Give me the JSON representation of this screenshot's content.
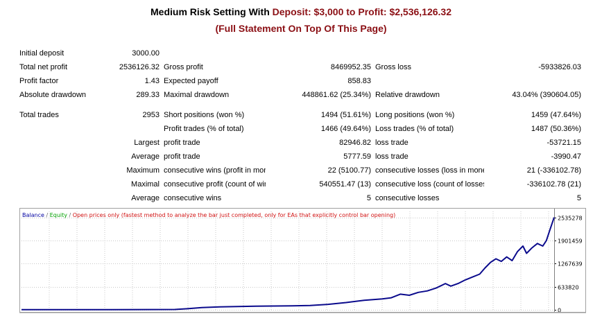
{
  "header": {
    "title_prefix": "Medium Risk Setting With ",
    "title_highlight": "Deposit: $3,000 to Profit: $2,536,126.32",
    "subtitle": "(Full Statement On Top Of This Page)"
  },
  "colors": {
    "title_text": "#000000",
    "highlight_text": "#8b0f14",
    "balance_line": "#0a0a8c",
    "equity_legend": "#00a000",
    "note_legend": "#d01010",
    "grid": "#c8c8c8"
  },
  "report": {
    "initial_deposit": {
      "label": "Initial deposit",
      "value": "3000.00"
    },
    "total_net_profit": {
      "label": "Total net profit",
      "value": "2536126.32"
    },
    "gross_profit": {
      "label": "Gross profit",
      "value": "8469952.35"
    },
    "gross_loss": {
      "label": "Gross loss",
      "value": "-5933826.03"
    },
    "profit_factor": {
      "label": "Profit factor",
      "value": "1.43"
    },
    "expected_payoff": {
      "label": "Expected payoff",
      "value": "858.83"
    },
    "absolute_drawdown": {
      "label": "Absolute drawdown",
      "value": "289.33"
    },
    "maximal_drawdown": {
      "label": "Maximal drawdown",
      "value": "448861.62 (25.34%)"
    },
    "relative_drawdown": {
      "label": "Relative drawdown",
      "value": "43.04% (390604.05)"
    },
    "total_trades": {
      "label": "Total trades",
      "value": "2953"
    },
    "short_positions": {
      "label": "Short positions (won %)",
      "value": "1494 (51.61%)"
    },
    "long_positions": {
      "label": "Long positions (won %)",
      "value": "1459 (47.64%)"
    },
    "profit_trades": {
      "label": "Profit trades (% of total)",
      "value": "1466 (49.64%)"
    },
    "loss_trades": {
      "label": "Loss trades (% of total)",
      "value": "1487 (50.36%)"
    },
    "largest": {
      "prefix": "Largest",
      "profit_label": "profit trade",
      "profit_value": "82946.82",
      "loss_label": "loss trade",
      "loss_value": "-53721.15"
    },
    "average": {
      "prefix": "Average",
      "profit_label": "profit trade",
      "profit_value": "5777.59",
      "loss_label": "loss trade",
      "loss_value": "-3990.47"
    },
    "maximum": {
      "prefix": "Maximum",
      "wins_label": "consecutive wins (profit in money)",
      "wins_value": "22 (5100.77)",
      "losses_label": "consecutive losses (loss in money)",
      "losses_value": "21 (-336102.78)"
    },
    "maximal": {
      "prefix": "Maximal",
      "profit_label": "consecutive profit (count of wins)",
      "profit_value": "540551.47 (13)",
      "loss_label": "consecutive loss (count of losses)",
      "loss_value": "-336102.78 (21)"
    },
    "average_consecutive": {
      "prefix": "Average",
      "wins_label": "consecutive wins",
      "wins_value": "5",
      "losses_label": "consecutive losses",
      "losses_value": "5"
    }
  },
  "chart_legend": {
    "balance": "Balance",
    "sep1": " / ",
    "equity": "Equity",
    "sep2": " / ",
    "note": "Open prices only (fastest method to analyze the bar just completed, only for EAs that explicitly control bar opening)"
  },
  "chart_data": {
    "type": "line",
    "ylim": [
      0,
      2700000
    ],
    "yticks": [
      {
        "value": 0,
        "label": "0"
      },
      {
        "value": 633820,
        "label": "633820"
      },
      {
        "value": 1267639,
        "label": "1267639"
      },
      {
        "value": 1901459,
        "label": "1901459"
      },
      {
        "value": 2535278,
        "label": "2535278"
      }
    ],
    "x_range": [
      0,
      2953
    ],
    "grid": true,
    "series": [
      {
        "color": "#0a0a8c",
        "points": [
          [
            0,
            3000
          ],
          [
            100,
            4000
          ],
          [
            300,
            5000
          ],
          [
            500,
            6000
          ],
          [
            700,
            8000
          ],
          [
            850,
            10000
          ],
          [
            920,
            30000
          ],
          [
            1000,
            60000
          ],
          [
            1100,
            80000
          ],
          [
            1200,
            90000
          ],
          [
            1300,
            100000
          ],
          [
            1400,
            105000
          ],
          [
            1500,
            110000
          ],
          [
            1600,
            120000
          ],
          [
            1700,
            150000
          ],
          [
            1800,
            200000
          ],
          [
            1900,
            260000
          ],
          [
            2000,
            300000
          ],
          [
            2050,
            330000
          ],
          [
            2100,
            430000
          ],
          [
            2150,
            400000
          ],
          [
            2200,
            480000
          ],
          [
            2250,
            520000
          ],
          [
            2300,
            600000
          ],
          [
            2350,
            720000
          ],
          [
            2380,
            650000
          ],
          [
            2420,
            720000
          ],
          [
            2460,
            820000
          ],
          [
            2500,
            900000
          ],
          [
            2540,
            980000
          ],
          [
            2570,
            1150000
          ],
          [
            2600,
            1300000
          ],
          [
            2630,
            1400000
          ],
          [
            2660,
            1330000
          ],
          [
            2690,
            1450000
          ],
          [
            2720,
            1350000
          ],
          [
            2750,
            1600000
          ],
          [
            2780,
            1750000
          ],
          [
            2800,
            1550000
          ],
          [
            2830,
            1700000
          ],
          [
            2860,
            1820000
          ],
          [
            2890,
            1750000
          ],
          [
            2910,
            1900000
          ],
          [
            2930,
            2200000
          ],
          [
            2953,
            2536126
          ]
        ]
      }
    ]
  }
}
